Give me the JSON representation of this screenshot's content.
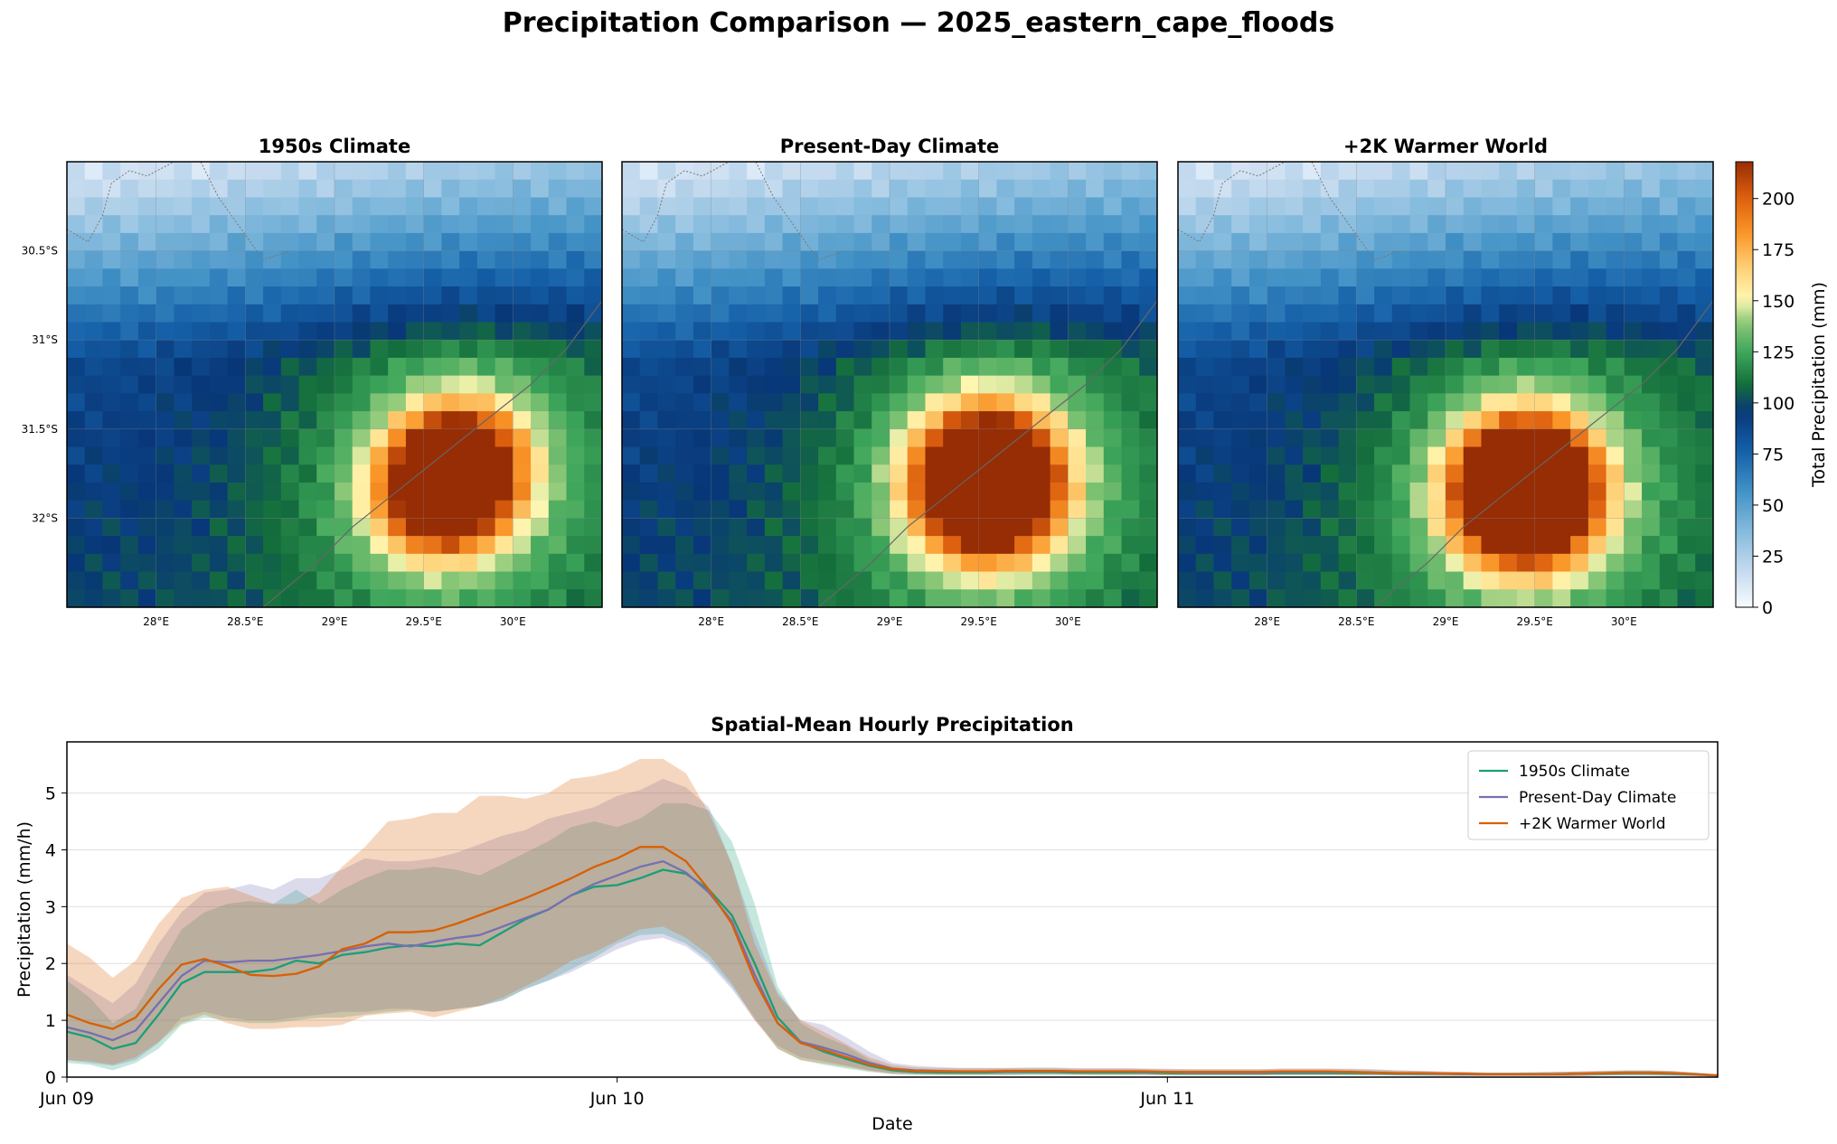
{
  "title": "Precipitation Comparison — 2025_eastern_cape_floods",
  "chart_data": [
    {
      "type": "heatmap",
      "panels": [
        {
          "title": "1950s Climate",
          "peak": [
            29.65,
            -31.78
          ],
          "sigma": 0.27,
          "peak_value": 195
        },
        {
          "title": "Present-Day Climate",
          "peak": [
            29.55,
            -31.8
          ],
          "sigma": 0.3,
          "peak_value": 210
        },
        {
          "title": "+2K Warmer World",
          "peak": [
            29.45,
            -31.85
          ],
          "sigma": 0.3,
          "peak_value": 218
        }
      ],
      "xlim": [
        27.5,
        30.5
      ],
      "ylim": [
        -32.5,
        -30.0
      ],
      "xticks": [
        {
          "value": 28.0,
          "label": "28°E"
        },
        {
          "value": 28.5,
          "label": "28.5°E"
        },
        {
          "value": 29.0,
          "label": "29°E"
        },
        {
          "value": 29.5,
          "label": "29.5°E"
        },
        {
          "value": 30.0,
          "label": "30°E"
        }
      ],
      "yticks": [
        {
          "value": -30.5,
          "label": "30.5°S"
        },
        {
          "value": -31.0,
          "label": "31°S"
        },
        {
          "value": -31.5,
          "label": "31.5°S"
        },
        {
          "value": -32.0,
          "label": "32°S"
        }
      ],
      "colorbar": {
        "label": "Total Precipitation (mm)",
        "range": [
          0,
          218
        ],
        "ticks": [
          "0",
          "25",
          "50",
          "75",
          "100",
          "125",
          "150",
          "175",
          "200"
        ]
      }
    },
    {
      "type": "line",
      "title": "Spatial-Mean Hourly Precipitation",
      "xlabel": "Date",
      "ylabel": "Precipitation (mm/h)",
      "ylim": [
        0,
        5.9
      ],
      "xlim": [
        0,
        72
      ],
      "x_unit": "hours from Jun 09 00:00",
      "xticks": [
        {
          "value": 0,
          "label": "Jun 09"
        },
        {
          "value": 24,
          "label": "Jun 10"
        },
        {
          "value": 48,
          "label": "Jun 11"
        }
      ],
      "yticks": [
        "0",
        "1",
        "2",
        "3",
        "4",
        "5"
      ],
      "grid": "horizontal",
      "legend_position": "top-right",
      "x": [
        0,
        1,
        2,
        3,
        4,
        5,
        6,
        7,
        8,
        9,
        10,
        11,
        12,
        13,
        14,
        15,
        16,
        17,
        18,
        19,
        20,
        21,
        22,
        23,
        24,
        25,
        26,
        27,
        28,
        29,
        30,
        31,
        32,
        33,
        34,
        35,
        36,
        37,
        38,
        39,
        40,
        41,
        42,
        43,
        44,
        45,
        46,
        47,
        48,
        49,
        50,
        51,
        52,
        53,
        54,
        55,
        56,
        57,
        58,
        59,
        60,
        61,
        62,
        63,
        64,
        65,
        66,
        67,
        68,
        69,
        70,
        71,
        72
      ],
      "series": [
        {
          "name": "1950s Climate",
          "color": "#1b9e77",
          "values": [
            0.8,
            0.7,
            0.5,
            0.6,
            1.1,
            1.65,
            1.85,
            1.85,
            1.85,
            1.9,
            2.05,
            2.0,
            2.15,
            2.2,
            2.28,
            2.32,
            2.3,
            2.35,
            2.32,
            2.55,
            2.78,
            2.95,
            3.2,
            3.35,
            3.38,
            3.5,
            3.65,
            3.58,
            3.3,
            2.85,
            2.0,
            1.05,
            0.62,
            0.45,
            0.32,
            0.2,
            0.12,
            0.09,
            0.08,
            0.08,
            0.08,
            0.09,
            0.09,
            0.09,
            0.08,
            0.08,
            0.08,
            0.08,
            0.07,
            0.07,
            0.07,
            0.07,
            0.07,
            0.07,
            0.07,
            0.07,
            0.07,
            0.07,
            0.06,
            0.06,
            0.06,
            0.05,
            0.05,
            0.05,
            0.05,
            0.05,
            0.06,
            0.06,
            0.07,
            0.07,
            0.06,
            0.05,
            0.03
          ],
          "low": [
            0.25,
            0.22,
            0.12,
            0.25,
            0.5,
            0.92,
            1.05,
            1.0,
            0.95,
            0.95,
            1.0,
            1.05,
            1.05,
            1.1,
            1.15,
            1.18,
            1.15,
            1.2,
            1.25,
            1.35,
            1.55,
            1.7,
            1.9,
            2.1,
            2.35,
            2.5,
            2.52,
            2.35,
            2.05,
            1.6,
            1.05,
            0.5,
            0.3,
            0.22,
            0.15,
            0.09,
            0.05,
            0.04,
            0.03,
            0.03,
            0.03,
            0.03,
            0.04,
            0.04,
            0.04,
            0.03,
            0.03,
            0.03,
            0.03,
            0.03,
            0.03,
            0.03,
            0.03,
            0.03,
            0.03,
            0.03,
            0.03,
            0.03,
            0.03,
            0.02,
            0.02,
            0.02,
            0.02,
            0.02,
            0.02,
            0.02,
            0.02,
            0.03,
            0.03,
            0.03,
            0.02,
            0.02,
            0.01
          ],
          "high": [
            1.7,
            1.4,
            0.95,
            1.2,
            1.9,
            2.6,
            2.9,
            3.05,
            3.1,
            3.05,
            3.3,
            3.05,
            3.3,
            3.5,
            3.65,
            3.65,
            3.7,
            3.65,
            3.55,
            3.75,
            3.95,
            4.15,
            4.4,
            4.5,
            4.4,
            4.55,
            4.82,
            4.82,
            4.7,
            4.15,
            3.05,
            1.6,
            0.95,
            0.72,
            0.55,
            0.3,
            0.18,
            0.14,
            0.13,
            0.13,
            0.13,
            0.14,
            0.14,
            0.14,
            0.13,
            0.13,
            0.13,
            0.13,
            0.12,
            0.12,
            0.12,
            0.12,
            0.12,
            0.12,
            0.12,
            0.12,
            0.12,
            0.11,
            0.1,
            0.1,
            0.09,
            0.08,
            0.08,
            0.08,
            0.09,
            0.09,
            0.1,
            0.1,
            0.11,
            0.11,
            0.1,
            0.08,
            0.05
          ]
        },
        {
          "name": "Present-Day Climate",
          "color": "#7570b3",
          "values": [
            0.88,
            0.78,
            0.65,
            0.82,
            1.3,
            1.78,
            2.05,
            2.02,
            2.05,
            2.05,
            2.1,
            2.15,
            2.22,
            2.3,
            2.35,
            2.3,
            2.38,
            2.45,
            2.5,
            2.65,
            2.8,
            2.95,
            3.2,
            3.4,
            3.55,
            3.7,
            3.8,
            3.6,
            3.25,
            2.75,
            1.8,
            0.95,
            0.62,
            0.52,
            0.4,
            0.25,
            0.15,
            0.12,
            0.11,
            0.1,
            0.1,
            0.1,
            0.11,
            0.11,
            0.1,
            0.1,
            0.1,
            0.09,
            0.09,
            0.08,
            0.08,
            0.08,
            0.08,
            0.09,
            0.09,
            0.09,
            0.09,
            0.08,
            0.07,
            0.07,
            0.06,
            0.05,
            0.05,
            0.05,
            0.05,
            0.05,
            0.06,
            0.07,
            0.08,
            0.08,
            0.07,
            0.05,
            0.03
          ],
          "low": [
            0.3,
            0.25,
            0.2,
            0.3,
            0.6,
            1.05,
            1.15,
            1.05,
            1.0,
            1.0,
            1.05,
            1.1,
            1.15,
            1.15,
            1.2,
            1.2,
            1.15,
            1.2,
            1.25,
            1.35,
            1.55,
            1.7,
            1.85,
            2.05,
            2.25,
            2.4,
            2.45,
            2.3,
            2.0,
            1.55,
            1.0,
            0.55,
            0.35,
            0.28,
            0.2,
            0.12,
            0.07,
            0.05,
            0.05,
            0.04,
            0.04,
            0.04,
            0.05,
            0.05,
            0.04,
            0.04,
            0.04,
            0.04,
            0.04,
            0.03,
            0.03,
            0.03,
            0.03,
            0.04,
            0.04,
            0.04,
            0.04,
            0.03,
            0.03,
            0.03,
            0.02,
            0.02,
            0.02,
            0.02,
            0.02,
            0.02,
            0.02,
            0.03,
            0.03,
            0.03,
            0.03,
            0.02,
            0.01
          ],
          "high": [
            1.8,
            1.55,
            1.3,
            1.65,
            2.35,
            2.9,
            3.25,
            3.3,
            3.4,
            3.3,
            3.5,
            3.5,
            3.65,
            3.85,
            3.8,
            3.8,
            3.85,
            3.95,
            4.1,
            4.25,
            4.35,
            4.55,
            4.65,
            4.75,
            4.95,
            5.05,
            5.25,
            5.1,
            4.75,
            3.75,
            2.55,
            1.5,
            1.0,
            0.92,
            0.7,
            0.45,
            0.25,
            0.2,
            0.18,
            0.16,
            0.16,
            0.16,
            0.17,
            0.17,
            0.16,
            0.16,
            0.16,
            0.15,
            0.15,
            0.14,
            0.14,
            0.14,
            0.14,
            0.15,
            0.15,
            0.15,
            0.15,
            0.14,
            0.12,
            0.11,
            0.1,
            0.09,
            0.08,
            0.08,
            0.08,
            0.09,
            0.1,
            0.11,
            0.12,
            0.12,
            0.11,
            0.08,
            0.05
          ]
        },
        {
          "name": "+2K Warmer World",
          "color": "#d95f02",
          "values": [
            1.1,
            0.95,
            0.85,
            1.05,
            1.55,
            1.98,
            2.08,
            1.95,
            1.8,
            1.78,
            1.82,
            1.95,
            2.25,
            2.35,
            2.55,
            2.55,
            2.58,
            2.7,
            2.85,
            3.0,
            3.15,
            3.32,
            3.5,
            3.7,
            3.85,
            4.05,
            4.05,
            3.8,
            3.3,
            2.7,
            1.7,
            0.95,
            0.6,
            0.48,
            0.35,
            0.22,
            0.14,
            0.11,
            0.1,
            0.1,
            0.1,
            0.11,
            0.11,
            0.11,
            0.1,
            0.1,
            0.1,
            0.1,
            0.09,
            0.09,
            0.09,
            0.09,
            0.09,
            0.1,
            0.1,
            0.1,
            0.09,
            0.08,
            0.07,
            0.07,
            0.06,
            0.06,
            0.05,
            0.05,
            0.05,
            0.05,
            0.06,
            0.07,
            0.08,
            0.08,
            0.07,
            0.05,
            0.03
          ],
          "low": [
            0.3,
            0.28,
            0.22,
            0.35,
            0.62,
            0.95,
            1.1,
            0.95,
            0.85,
            0.85,
            0.88,
            0.88,
            0.92,
            1.08,
            1.12,
            1.15,
            1.05,
            1.15,
            1.25,
            1.4,
            1.6,
            1.8,
            2.05,
            2.2,
            2.4,
            2.6,
            2.65,
            2.45,
            2.15,
            1.65,
            1.0,
            0.5,
            0.3,
            0.24,
            0.18,
            0.11,
            0.06,
            0.05,
            0.05,
            0.05,
            0.05,
            0.05,
            0.05,
            0.05,
            0.05,
            0.05,
            0.05,
            0.05,
            0.04,
            0.04,
            0.04,
            0.04,
            0.04,
            0.05,
            0.05,
            0.05,
            0.04,
            0.04,
            0.03,
            0.03,
            0.03,
            0.03,
            0.02,
            0.02,
            0.02,
            0.02,
            0.02,
            0.03,
            0.03,
            0.03,
            0.03,
            0.02,
            0.01
          ],
          "high": [
            2.35,
            2.1,
            1.75,
            2.05,
            2.7,
            3.15,
            3.3,
            3.35,
            3.2,
            3.05,
            3.05,
            3.25,
            3.7,
            4.05,
            4.5,
            4.55,
            4.65,
            4.65,
            4.95,
            4.95,
            4.9,
            5.0,
            5.25,
            5.3,
            5.4,
            5.6,
            5.6,
            5.35,
            4.65,
            3.75,
            2.35,
            1.45,
            1.0,
            0.8,
            0.58,
            0.35,
            0.22,
            0.17,
            0.16,
            0.16,
            0.16,
            0.16,
            0.16,
            0.16,
            0.15,
            0.15,
            0.15,
            0.15,
            0.14,
            0.14,
            0.14,
            0.14,
            0.14,
            0.15,
            0.15,
            0.15,
            0.14,
            0.13,
            0.12,
            0.11,
            0.1,
            0.09,
            0.08,
            0.08,
            0.08,
            0.09,
            0.1,
            0.11,
            0.12,
            0.12,
            0.11,
            0.08,
            0.05
          ]
        }
      ]
    }
  ]
}
